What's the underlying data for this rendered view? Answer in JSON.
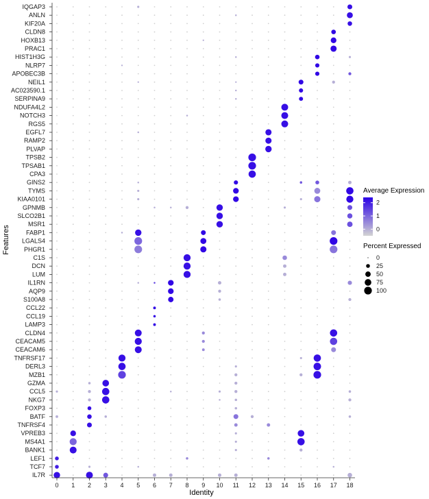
{
  "chart_data": {
    "type": "dotplot",
    "xlabel": "Identity",
    "ylabel": "Features",
    "clusters": [
      "0",
      "1",
      "2",
      "3",
      "4",
      "5",
      "6",
      "7",
      "8",
      "9",
      "10",
      "11",
      "12",
      "13",
      "14",
      "15",
      "16",
      "17",
      "18"
    ],
    "features": [
      "IQGAP3",
      "ANLN",
      "KIF20A",
      "CLDN8",
      "HOXB13",
      "PRAC1",
      "HIST1H3G",
      "NLRP7",
      "APOBEC3B",
      "NEIL1",
      "AC023590.1",
      "SERPINA9",
      "NDUFA4L2",
      "NOTCH3",
      "RGS5",
      "EGFL7",
      "RAMP2",
      "PLVAP",
      "TPSB2",
      "TPSAB1",
      "CPA3",
      "GINS2",
      "TYMS",
      "KIAA0101",
      "GPNMB",
      "SLCO2B1",
      "MSR1",
      "FABP1",
      "LGALS4",
      "PHGR1",
      "C1S",
      "DCN",
      "LUM",
      "IL1RN",
      "AQP9",
      "S100A8",
      "CCL22",
      "CCL19",
      "LAMP3",
      "CLDN4",
      "CEACAM5",
      "CEACAM6",
      "TNFRSF17",
      "DERL3",
      "MZB1",
      "GZMA",
      "CCL5",
      "NKG7",
      "FOXP3",
      "BATF",
      "TNFRSF4",
      "VPREB3",
      "MS4A1",
      "BANK1",
      "LEF1",
      "TCF7",
      "IL7R"
    ],
    "points": [
      [
        "IQGAP3",
        "18",
        40,
        2.2
      ],
      [
        "IQGAP3",
        "5",
        8,
        0
      ],
      [
        "ANLN",
        "18",
        60,
        2.2
      ],
      [
        "ANLN",
        "11",
        5,
        0
      ],
      [
        "KIF20A",
        "18",
        35,
        2.2
      ],
      [
        "CLDN8",
        "17",
        35,
        2.3
      ],
      [
        "HOXB13",
        "17",
        55,
        2.3
      ],
      [
        "HOXB13",
        "9",
        4,
        0
      ],
      [
        "PRAC1",
        "17",
        65,
        2.3
      ],
      [
        "HIST1H3G",
        "16",
        35,
        2.3
      ],
      [
        "HIST1H3G",
        "11",
        5,
        0
      ],
      [
        "HIST1H3G",
        "18",
        8,
        0
      ],
      [
        "NLRP7",
        "16",
        30,
        2.3
      ],
      [
        "NLRP7",
        "4",
        4,
        0
      ],
      [
        "APOBEC3B",
        "16",
        30,
        2.3
      ],
      [
        "APOBEC3B",
        "18",
        15,
        1.2
      ],
      [
        "NEIL1",
        "15",
        40,
        2.3
      ],
      [
        "NEIL1",
        "17",
        15,
        0
      ],
      [
        "NEIL1",
        "11",
        4,
        0
      ],
      [
        "NEIL1",
        "5",
        4,
        0
      ],
      [
        "AC023590.1",
        "15",
        30,
        2.3
      ],
      [
        "AC023590.1",
        "11",
        5,
        0
      ],
      [
        "SERPINA9",
        "15",
        28,
        2.3
      ],
      [
        "SERPINA9",
        "11",
        5,
        0
      ],
      [
        "NDUFA4L2",
        "14",
        80,
        2.2
      ],
      [
        "NOTCH3",
        "14",
        80,
        2.2
      ],
      [
        "NOTCH3",
        "8",
        5,
        0
      ],
      [
        "RGS5",
        "14",
        80,
        2.2
      ],
      [
        "EGFL7",
        "13",
        65,
        2.2
      ],
      [
        "EGFL7",
        "5",
        5,
        0
      ],
      [
        "RAMP2",
        "13",
        65,
        2.2
      ],
      [
        "PLVAP",
        "13",
        70,
        2.2
      ],
      [
        "TPSB2",
        "12",
        100,
        2.2
      ],
      [
        "TPSAB1",
        "12",
        100,
        2.2
      ],
      [
        "CPA3",
        "12",
        90,
        2.2
      ],
      [
        "GINS2",
        "11",
        30,
        2.3
      ],
      [
        "GINS2",
        "16",
        25,
        1.2
      ],
      [
        "GINS2",
        "18",
        20,
        0
      ],
      [
        "GINS2",
        "15",
        10,
        1.2
      ],
      [
        "GINS2",
        "5",
        5,
        0
      ],
      [
        "TYMS",
        "11",
        55,
        2.3
      ],
      [
        "TYMS",
        "16",
        60,
        0.5
      ],
      [
        "TYMS",
        "18",
        90,
        2.3
      ],
      [
        "TYMS",
        "5",
        8,
        0
      ],
      [
        "KIAA0101",
        "11",
        55,
        2.3
      ],
      [
        "KIAA0101",
        "16",
        65,
        0.8
      ],
      [
        "KIAA0101",
        "18",
        85,
        2.3
      ],
      [
        "KIAA0101",
        "5",
        8,
        0
      ],
      [
        "KIAA0101",
        "15",
        8,
        0
      ],
      [
        "GPNMB",
        "10",
        70,
        2.2
      ],
      [
        "GPNMB",
        "18",
        40,
        1.3
      ],
      [
        "GPNMB",
        "8",
        15,
        0
      ],
      [
        "GPNMB",
        "7",
        5,
        0
      ],
      [
        "GPNMB",
        "6",
        5,
        0
      ],
      [
        "GPNMB",
        "14",
        8,
        0
      ],
      [
        "SLCO2B1",
        "10",
        70,
        2.2
      ],
      [
        "SLCO2B1",
        "18",
        45,
        1.3
      ],
      [
        "MSR1",
        "10",
        70,
        2.2
      ],
      [
        "MSR1",
        "18",
        50,
        1.3
      ],
      [
        "FABP1",
        "9",
        40,
        2.3
      ],
      [
        "FABP1",
        "5",
        70,
        2.2
      ],
      [
        "FABP1",
        "17",
        40,
        0.8
      ],
      [
        "FABP1",
        "4",
        5,
        0
      ],
      [
        "LGALS4",
        "9",
        60,
        2.3
      ],
      [
        "LGALS4",
        "5",
        100,
        1.0
      ],
      [
        "LGALS4",
        "17",
        100,
        2.3
      ],
      [
        "PHGR1",
        "9",
        65,
        2.3
      ],
      [
        "PHGR1",
        "5",
        100,
        0.7
      ],
      [
        "PHGR1",
        "17",
        100,
        0.8
      ],
      [
        "C1S",
        "8",
        85,
        2.2
      ],
      [
        "C1S",
        "14",
        35,
        0.5
      ],
      [
        "DCN",
        "8",
        85,
        2.2
      ],
      [
        "DCN",
        "14",
        20,
        0
      ],
      [
        "LUM",
        "8",
        85,
        2.2
      ],
      [
        "LUM",
        "14",
        20,
        0
      ],
      [
        "IL1RN",
        "7",
        55,
        2.3
      ],
      [
        "IL1RN",
        "10",
        20,
        0
      ],
      [
        "IL1RN",
        "18",
        30,
        0.5
      ],
      [
        "IL1RN",
        "5",
        5,
        0
      ],
      [
        "IL1RN",
        "6",
        5,
        1.5
      ],
      [
        "AQP9",
        "7",
        55,
        2.3
      ],
      [
        "AQP9",
        "10",
        15,
        0
      ],
      [
        "S100A8",
        "7",
        50,
        2.3
      ],
      [
        "S100A8",
        "10",
        10,
        0
      ],
      [
        "S100A8",
        "18",
        15,
        0
      ],
      [
        "CCL22",
        "6",
        12,
        2.3
      ],
      [
        "CCL19",
        "6",
        10,
        2.3
      ],
      [
        "LAMP3",
        "6",
        12,
        2.3
      ],
      [
        "CLDN4",
        "5",
        80,
        2.2
      ],
      [
        "CLDN4",
        "17",
        90,
        2.2
      ],
      [
        "CLDN4",
        "9",
        15,
        0.5
      ],
      [
        "CEACAM5",
        "5",
        85,
        2.2
      ],
      [
        "CEACAM5",
        "17",
        90,
        1.5
      ],
      [
        "CEACAM5",
        "9",
        15,
        0.5
      ],
      [
        "CEACAM6",
        "5",
        80,
        2.2
      ],
      [
        "CEACAM6",
        "17",
        40,
        0.5
      ],
      [
        "CEACAM6",
        "9",
        12,
        0.5
      ],
      [
        "TNFRSF17",
        "4",
        85,
        2.2
      ],
      [
        "TNFRSF17",
        "16",
        90,
        2.2
      ],
      [
        "TNFRSF17",
        "15",
        8,
        0
      ],
      [
        "DERL3",
        "4",
        90,
        2.2
      ],
      [
        "DERL3",
        "16",
        95,
        2.2
      ],
      [
        "DERL3",
        "11",
        8,
        0
      ],
      [
        "MZB1",
        "4",
        100,
        1.5
      ],
      [
        "MZB1",
        "16",
        100,
        2.2
      ],
      [
        "MZB1",
        "11",
        15,
        0
      ],
      [
        "MZB1",
        "15",
        15,
        0
      ],
      [
        "GZMA",
        "3",
        75,
        2.2
      ],
      [
        "GZMA",
        "2",
        10,
        0
      ],
      [
        "GZMA",
        "11",
        15,
        0
      ],
      [
        "CCL5",
        "3",
        90,
        2.2
      ],
      [
        "CCL5",
        "2",
        15,
        0
      ],
      [
        "CCL5",
        "0",
        8,
        0
      ],
      [
        "CCL5",
        "7",
        5,
        0
      ],
      [
        "CCL5",
        "10",
        8,
        0
      ],
      [
        "CCL5",
        "11",
        15,
        0
      ],
      [
        "CCL5",
        "18",
        10,
        0
      ],
      [
        "NKG7",
        "3",
        90,
        2.2
      ],
      [
        "NKG7",
        "2",
        15,
        0
      ],
      [
        "NKG7",
        "18",
        15,
        0
      ],
      [
        "NKG7",
        "11",
        10,
        0
      ],
      [
        "NKG7",
        "10",
        5,
        0
      ],
      [
        "FOXP3",
        "2",
        25,
        2.2
      ],
      [
        "FOXP3",
        "11",
        10,
        0
      ],
      [
        "BATF",
        "2",
        35,
        2.2
      ],
      [
        "BATF",
        "0",
        12,
        0
      ],
      [
        "BATF",
        "3",
        10,
        0
      ],
      [
        "BATF",
        "11",
        40,
        0.8
      ],
      [
        "BATF",
        "12",
        15,
        0
      ],
      [
        "BATF",
        "18",
        10,
        0
      ],
      [
        "TNFRSF4",
        "2",
        40,
        2.2
      ],
      [
        "TNFRSF4",
        "11",
        20,
        0.5
      ],
      [
        "TNFRSF4",
        "13",
        20,
        0.5
      ],
      [
        "VPREB3",
        "1",
        55,
        2.2
      ],
      [
        "VPREB3",
        "15",
        75,
        2.2
      ],
      [
        "VPREB3",
        "11",
        8,
        0
      ],
      [
        "MS4A1",
        "1",
        85,
        1.0
      ],
      [
        "MS4A1",
        "15",
        90,
        2.2
      ],
      [
        "MS4A1",
        "11",
        8,
        0
      ],
      [
        "BANK1",
        "1",
        80,
        2.2
      ],
      [
        "BANK1",
        "15",
        15,
        0
      ],
      [
        "BANK1",
        "11",
        8,
        0
      ],
      [
        "LEF1",
        "0",
        25,
        2.0
      ],
      [
        "LEF1",
        "8",
        10,
        0.5
      ],
      [
        "LEF1",
        "13",
        10,
        0.5
      ],
      [
        "TCF7",
        "0",
        25,
        2.0
      ],
      [
        "TCF7",
        "2",
        8,
        0
      ],
      [
        "TCF7",
        "5",
        5,
        0
      ],
      [
        "TCF7",
        "17",
        5,
        0
      ],
      [
        "IL7R",
        "0",
        70,
        2.2
      ],
      [
        "IL7R",
        "2",
        80,
        2.2
      ],
      [
        "IL7R",
        "3",
        40,
        1.2
      ],
      [
        "IL7R",
        "6",
        20,
        0
      ],
      [
        "IL7R",
        "7",
        20,
        0
      ],
      [
        "IL7R",
        "10",
        20,
        0
      ],
      [
        "IL7R",
        "11",
        20,
        0
      ],
      [
        "IL7R",
        "18",
        35,
        0
      ]
    ],
    "legend_color": {
      "title": "Average Expression",
      "ticks": [
        "2",
        "1",
        "0"
      ],
      "low_color": "#d3d3d3",
      "high_color": "#2b00e6",
      "range": [
        -0.5,
        2.4
      ]
    },
    "legend_size": {
      "title": "Percent Expressed",
      "values": [
        "0",
        "25",
        "50",
        "75",
        "100"
      ]
    },
    "grid": false
  }
}
